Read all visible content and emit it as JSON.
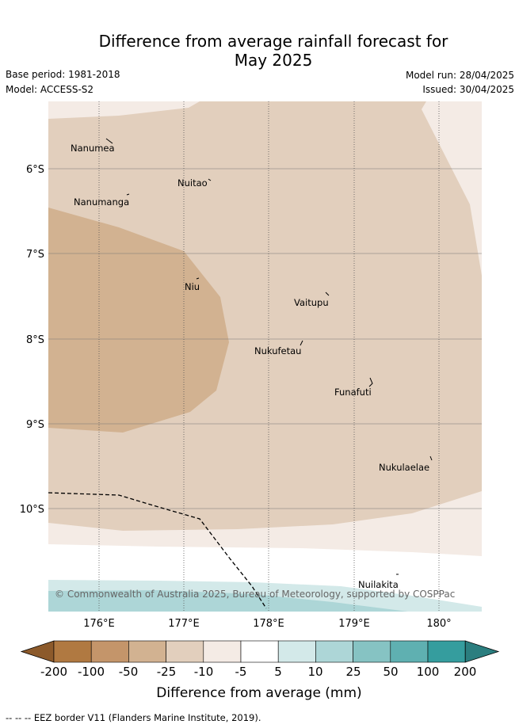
{
  "title_line1": "Difference from average rainfall forecast for",
  "title_line2": "May 2025",
  "meta": {
    "base_period": "Base period: 1981-2018",
    "model": "Model: ACCESS-S2",
    "model_run": "Model run: 28/04/2025",
    "issued": "Issued: 30/04/2025"
  },
  "map": {
    "lat_labels": [
      "6°S",
      "7°S",
      "8°S",
      "9°S",
      "10°S"
    ],
    "lon_labels": [
      "176°E",
      "177°E",
      "178°E",
      "179°E",
      "180°"
    ],
    "places": [
      {
        "name": "Nanumea"
      },
      {
        "name": "Nuitao"
      },
      {
        "name": "Nanumanga"
      },
      {
        "name": "Niu"
      },
      {
        "name": "Vaitupu"
      },
      {
        "name": "Nukufetau"
      },
      {
        "name": "Funafuti"
      },
      {
        "name": "Nukulaelae"
      },
      {
        "name": "Nuilakita"
      }
    ],
    "copyright": "© Commonwealth of Australia 2025, Bureau of Meteorology, supported by COSPPac"
  },
  "colorbar": {
    "labels": [
      "-200",
      "-100",
      "-50",
      "-25",
      "-10",
      "-5",
      "5",
      "10",
      "25",
      "50",
      "100",
      "200"
    ],
    "colors": [
      "#8c5a2b",
      "#b07941",
      "#c4956a",
      "#d2b291",
      "#e2cfbd",
      "#f4ebe5",
      "#ffffff",
      "#d3e9e9",
      "#add6d7",
      "#86c3c3",
      "#5fb0b1",
      "#359d9e",
      "#2b7e7f"
    ],
    "title": "Difference from average (mm)"
  },
  "footer": "--  --  -- EEZ border V11 (Flanders Marine Institute, 2019)."
}
